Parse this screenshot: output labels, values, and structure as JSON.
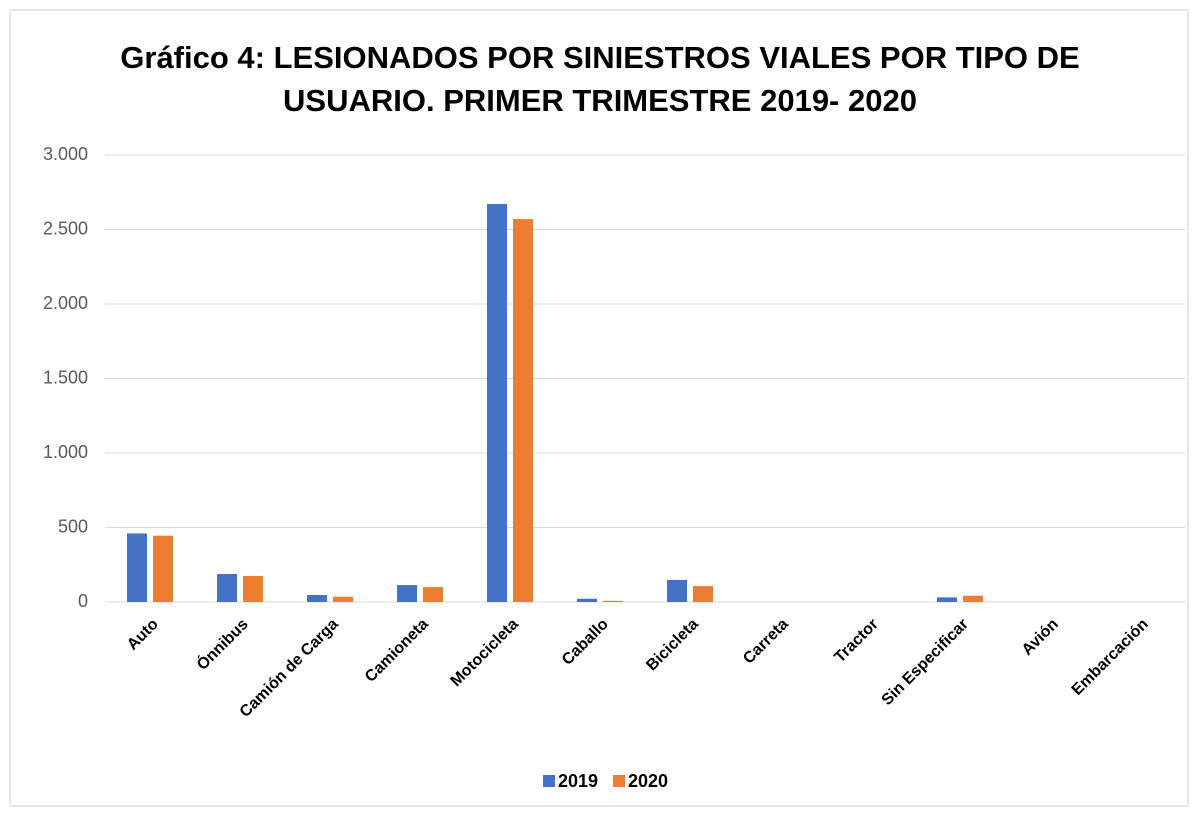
{
  "chart_data": {
    "type": "bar",
    "title": [
      "Gráfico 4: LESIONADOS POR SINIESTROS VIALES POR TIPO DE",
      "USUARIO. PRIMER TRIMESTRE 2019- 2020"
    ],
    "categories": [
      "Auto",
      "Ónnibus",
      "Camión de Carga",
      "Camioneta",
      "Motocicleta",
      "Caballo",
      "Bicicleta",
      "Carreta",
      "Tractor",
      "Sin Especificar",
      "Avión",
      "Embarcación"
    ],
    "series": [
      {
        "name": "2019",
        "color": "#4472c4",
        "values": [
          460,
          188,
          47,
          114,
          2671,
          22,
          148,
          0,
          0,
          31,
          0,
          0
        ]
      },
      {
        "name": "2020",
        "color": "#ed7d31",
        "values": [
          445,
          175,
          35,
          100,
          2570,
          8,
          107,
          0,
          0,
          42,
          0,
          0
        ]
      }
    ],
    "ylim": [
      0,
      3000
    ],
    "yticks": [
      0,
      500,
      {
        "value": 1000,
        "label": "1.000"
      },
      {
        "value": 1500,
        "label": "1.500"
      },
      {
        "value": 2000,
        "label": "2.000"
      },
      {
        "value": 2500,
        "label": "2.500"
      },
      {
        "value": 3000,
        "label": "3.000"
      }
    ],
    "grid": true,
    "legend": "bottom"
  }
}
